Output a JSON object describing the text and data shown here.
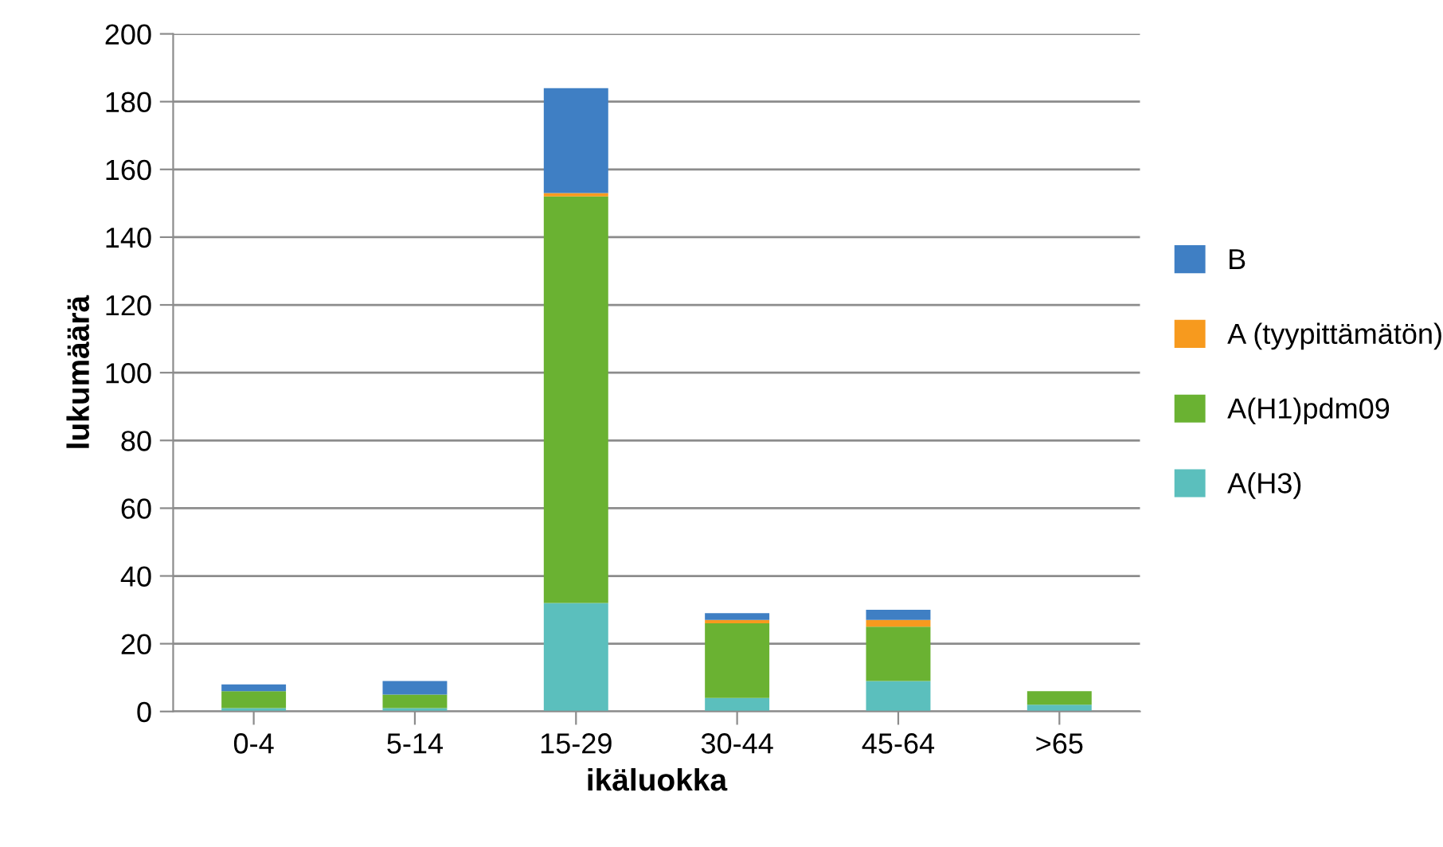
{
  "chart_data": {
    "type": "bar",
    "stacked": true,
    "xlabel": "ikäluokka",
    "ylabel": "lukumäärä",
    "categories": [
      "0-4",
      "5-14",
      "15-29",
      "30-44",
      "45-64",
      ">65"
    ],
    "series": [
      {
        "name": "A(H3)",
        "color": "#5bbfbd",
        "values": [
          1,
          1,
          32,
          4,
          9,
          2
        ]
      },
      {
        "name": "A(H1)pdm09",
        "color": "#6ab232",
        "values": [
          5,
          4,
          120,
          22,
          16,
          4
        ]
      },
      {
        "name": "A (tyypittämätön)",
        "color": "#f79a1e",
        "values": [
          0,
          0,
          1,
          1,
          2,
          0
        ]
      },
      {
        "name": "B",
        "color": "#3f7fc4",
        "values": [
          2,
          4,
          31,
          2,
          3,
          0
        ]
      }
    ],
    "ylim": [
      0,
      200
    ],
    "yticks": [
      0,
      20,
      40,
      60,
      80,
      100,
      120,
      140,
      160,
      180,
      200
    ],
    "grid": "y",
    "legend": "right"
  }
}
